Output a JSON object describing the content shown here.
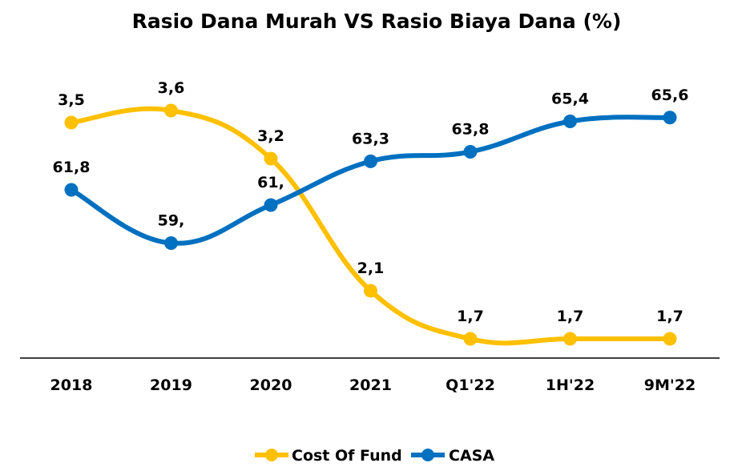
{
  "chart_data": {
    "type": "line",
    "title": "Rasio Dana Murah VS Rasio Biaya Dana (%)",
    "categories": [
      "2018",
      "2019",
      "2020",
      "2021",
      "Q1'22",
      "1H'22",
      "9M'22"
    ],
    "legend_position": "bottom",
    "grid": false,
    "series": [
      {
        "name": "Cost Of Fund",
        "color": "#FFC000",
        "values": [
          3.5,
          3.6,
          3.2,
          2.1,
          1.7,
          1.7,
          1.7
        ],
        "labels": [
          "3,5",
          "3,6",
          "3,2",
          "2,1",
          "1,7",
          "1,7",
          "1,7"
        ]
      },
      {
        "name": "CASA",
        "color": "#0070C0",
        "values": [
          61.8,
          59.0,
          61.0,
          63.3,
          63.8,
          65.4,
          65.6
        ],
        "labels": [
          "61,8",
          "59,",
          "61,",
          "63,3",
          "63,8",
          "65,4",
          "65,6"
        ]
      }
    ]
  }
}
